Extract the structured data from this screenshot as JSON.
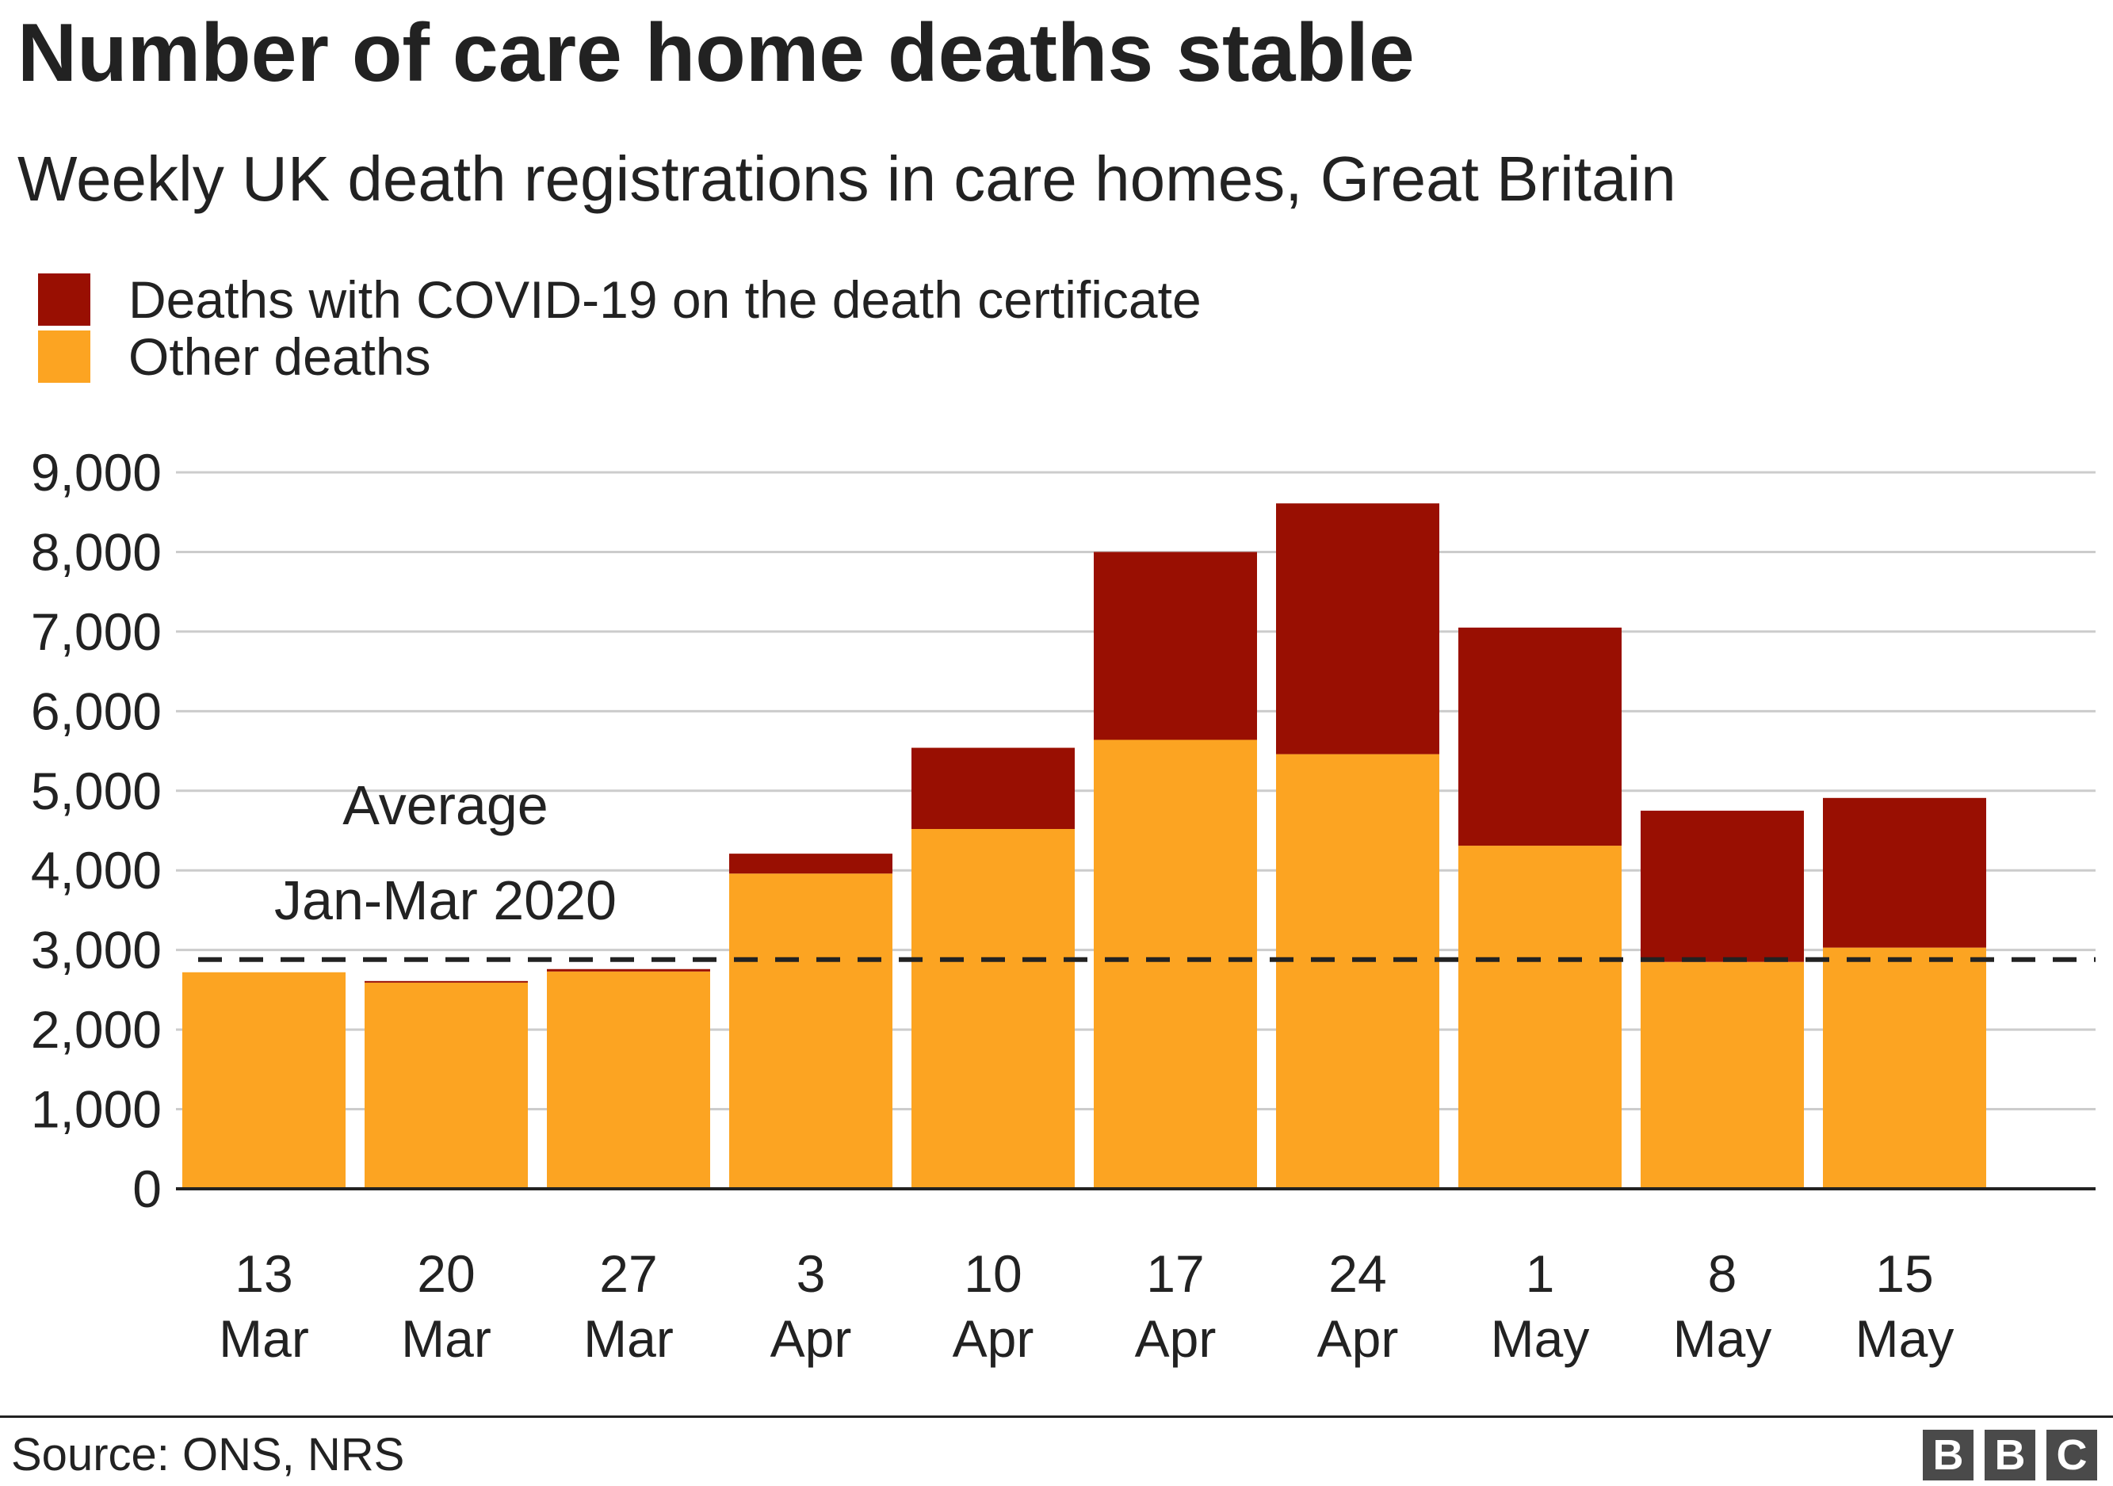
{
  "title": "Number of care home deaths stable",
  "subtitle": "Weekly UK death registrations in care homes, Great Britain",
  "legend": [
    {
      "label": "Deaths with COVID-19 on the death certificate",
      "color": "#990f02"
    },
    {
      "label": "Other deaths",
      "color": "#fca422"
    }
  ],
  "annotation": {
    "line1": "Average",
    "line2": "Jan-Mar 2020"
  },
  "source": "Source: ONS, NRS",
  "logo": [
    "B",
    "B",
    "C"
  ],
  "colors": {
    "covid": "#990f02",
    "other": "#fca422",
    "grid": "#cccccc",
    "axis": "#222222",
    "text": "#222222"
  },
  "chart_data": {
    "type": "bar",
    "stacked": true,
    "categories": [
      "13 Mar",
      "20 Mar",
      "27 Mar",
      "3 Apr",
      "10 Apr",
      "17 Apr",
      "24 Apr",
      "1 May",
      "8 May",
      "15 May"
    ],
    "category_lines": [
      [
        "13",
        "Mar"
      ],
      [
        "20",
        "Mar"
      ],
      [
        "27",
        "Mar"
      ],
      [
        "3",
        "Apr"
      ],
      [
        "10",
        "Apr"
      ],
      [
        "17",
        "Apr"
      ],
      [
        "24",
        "Apr"
      ],
      [
        "1",
        "May"
      ],
      [
        "8",
        "May"
      ],
      [
        "15",
        "May"
      ]
    ],
    "series": [
      {
        "name": "Other deaths",
        "color": "#fca422",
        "values": [
          2720,
          2590,
          2730,
          3960,
          4520,
          5640,
          5460,
          4310,
          2850,
          3030
        ]
      },
      {
        "name": "Deaths with COVID-19 on the death certificate",
        "color": "#990f02",
        "values": [
          0,
          20,
          30,
          250,
          1020,
          2360,
          3150,
          2740,
          1900,
          1880
        ]
      }
    ],
    "reference_line": {
      "value": 2880,
      "style": "dashed"
    },
    "ylim": [
      0,
      9000
    ],
    "yticks": [
      0,
      1000,
      2000,
      3000,
      4000,
      5000,
      6000,
      7000,
      8000,
      9000
    ],
    "ytick_labels": [
      "0",
      "1,000",
      "2,000",
      "3,000",
      "4,000",
      "5,000",
      "6,000",
      "7,000",
      "8,000",
      "9,000"
    ],
    "grid": true,
    "legend_position": "top-left",
    "xlabel": "",
    "ylabel": ""
  }
}
